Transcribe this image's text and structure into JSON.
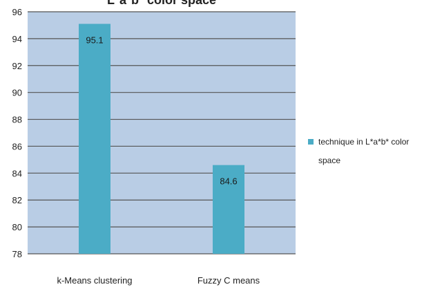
{
  "chart_data": {
    "type": "bar",
    "title": "L*a*b* color space",
    "categories": [
      "k-Means clustering",
      "Fuzzy C means"
    ],
    "series": [
      {
        "name": "technique in L*a*b* color space",
        "values": [
          95.1,
          84.6
        ],
        "color": "#4bacc6"
      }
    ],
    "data_labels": [
      "95.1",
      "84.6"
    ],
    "ylim": [
      78,
      96
    ],
    "yticks": [
      78,
      80,
      82,
      84,
      86,
      88,
      90,
      92,
      94,
      96
    ],
    "xlabel": "",
    "ylabel": "",
    "grid": true,
    "legend": "right",
    "plot_background": "#b9cde5",
    "gridline_color": "#555555"
  }
}
